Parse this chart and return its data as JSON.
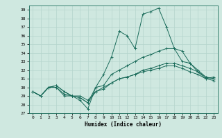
{
  "xlabel": "Humidex (Indice chaleur)",
  "ylabel": "",
  "xlim": [
    -0.5,
    23.5
  ],
  "ylim": [
    27,
    39.5
  ],
  "yticks": [
    27,
    28,
    29,
    30,
    31,
    32,
    33,
    34,
    35,
    36,
    37,
    38,
    39
  ],
  "xticks": [
    0,
    1,
    2,
    3,
    4,
    5,
    6,
    7,
    8,
    9,
    10,
    11,
    12,
    13,
    14,
    15,
    16,
    17,
    18,
    19,
    20,
    21,
    22,
    23
  ],
  "bg_color": "#cfe8e0",
  "line_color": "#1a6b5a",
  "grid_color": "#b5d5cc",
  "series": {
    "line1": [
      29.5,
      29.0,
      30.0,
      30.0,
      29.0,
      29.0,
      28.5,
      27.5,
      30.0,
      31.5,
      33.5,
      36.5,
      36.0,
      34.5,
      38.5,
      38.8,
      39.2,
      37.0,
      34.5,
      34.2,
      32.8,
      31.8,
      31.0,
      31.2
    ],
    "line2": [
      29.5,
      29.0,
      30.0,
      30.2,
      29.5,
      29.0,
      28.8,
      28.2,
      30.0,
      30.2,
      31.5,
      32.0,
      32.5,
      33.0,
      33.5,
      33.8,
      34.2,
      34.5,
      34.5,
      33.0,
      32.8,
      32.0,
      31.2,
      31.0
    ],
    "line3": [
      29.5,
      29.0,
      30.0,
      30.2,
      29.5,
      29.0,
      29.0,
      28.5,
      29.5,
      30.0,
      30.5,
      31.0,
      31.2,
      31.5,
      32.0,
      32.2,
      32.5,
      32.8,
      32.8,
      32.5,
      32.2,
      31.8,
      31.2,
      31.0
    ],
    "line4": [
      29.5,
      29.0,
      30.0,
      30.0,
      29.2,
      29.0,
      28.8,
      28.2,
      29.5,
      29.8,
      30.5,
      31.0,
      31.2,
      31.5,
      31.8,
      32.0,
      32.2,
      32.5,
      32.5,
      32.2,
      31.8,
      31.5,
      31.0,
      30.8
    ]
  }
}
